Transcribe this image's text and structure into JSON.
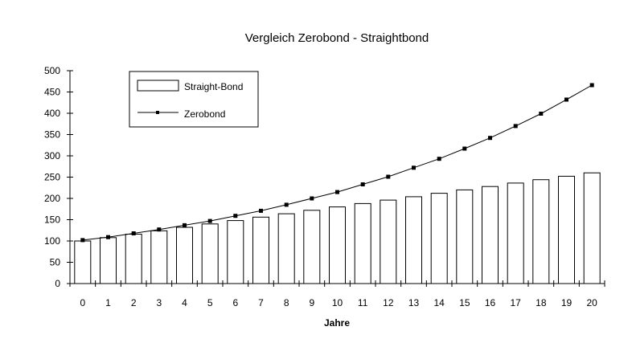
{
  "chart_data": {
    "type": "bar",
    "title": "Vergleich Zerobond - Straightbond",
    "xlabel": "Jahre",
    "ylabel": "",
    "ylim": [
      0,
      500
    ],
    "yticks": [
      0,
      50,
      100,
      150,
      200,
      250,
      300,
      350,
      400,
      450,
      500
    ],
    "categories": [
      "0",
      "1",
      "2",
      "3",
      "4",
      "5",
      "6",
      "7",
      "8",
      "9",
      "10",
      "11",
      "12",
      "13",
      "14",
      "15",
      "16",
      "17",
      "18",
      "19",
      "20"
    ],
    "grid": false,
    "legend_position": "top-left",
    "series": [
      {
        "name": "Straight-Bond",
        "kind": "bar",
        "values": [
          100,
          108,
          116,
          124,
          132,
          140,
          148,
          156,
          164,
          172,
          180,
          188,
          196,
          204,
          212,
          220,
          228,
          236,
          244,
          252,
          260
        ]
      },
      {
        "name": "Zerobond",
        "kind": "line",
        "values": [
          102,
          109,
          118,
          127,
          137,
          147,
          159,
          171,
          185,
          200,
          215,
          233,
          251,
          272,
          293,
          317,
          342,
          370,
          399,
          432,
          466
        ]
      }
    ]
  }
}
